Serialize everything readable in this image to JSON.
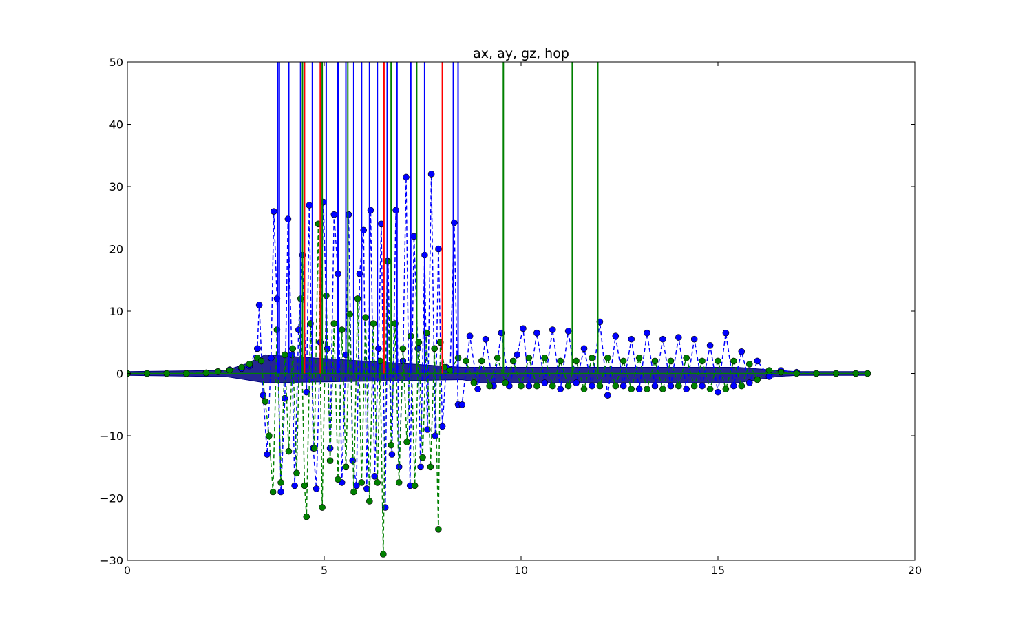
{
  "chart_data": {
    "type": "line",
    "title": "ax, ay, gz, hop",
    "xlabel": "",
    "ylabel": "",
    "xlim": [
      0,
      20
    ],
    "ylim": [
      -30,
      50
    ],
    "xticks": [
      0,
      5,
      10,
      15,
      20
    ],
    "yticks": [
      -30,
      -20,
      -10,
      0,
      10,
      20,
      30,
      40,
      50
    ],
    "ytick_labels": [
      "−30",
      "−20",
      "−10",
      "0",
      "10",
      "20",
      "30",
      "40",
      "50"
    ],
    "xtick_labels": [
      "0",
      "5",
      "10",
      "15",
      "20"
    ],
    "grid": false,
    "legend": "none",
    "colors": {
      "ax": "#0000ff",
      "ay": "#008000",
      "gz": "#00007f",
      "hop_blue": "#0000ff",
      "hop_green": "#008000",
      "hop_red": "#ff0000"
    },
    "marker_series": [
      {
        "key": "ax",
        "x": [
          0,
          0.5,
          1.0,
          1.5,
          2.0,
          2.3,
          2.6,
          2.9,
          3.1,
          3.3,
          3.35,
          3.45,
          3.55,
          3.65,
          3.72,
          3.8,
          3.9,
          4.0,
          4.08,
          4.18,
          4.25,
          4.35,
          4.45,
          4.55,
          4.62,
          4.72,
          4.8,
          4.9,
          4.98,
          5.08,
          5.15,
          5.25,
          5.35,
          5.45,
          5.55,
          5.62,
          5.72,
          5.82,
          5.9,
          6.0,
          6.08,
          6.18,
          6.28,
          6.38,
          6.45,
          6.55,
          6.62,
          6.72,
          6.82,
          6.9,
          7.0,
          7.08,
          7.18,
          7.28,
          7.38,
          7.45,
          7.55,
          7.62,
          7.72,
          7.82,
          7.9,
          8.0,
          8.1,
          8.2,
          8.3,
          8.4,
          8.5,
          8.7,
          8.9,
          9.1,
          9.3,
          9.5,
          9.7,
          9.9,
          10.05,
          10.2,
          10.4,
          10.6,
          10.8,
          11.0,
          11.2,
          11.4,
          11.6,
          11.8,
          12.0,
          12.2,
          12.4,
          12.6,
          12.8,
          13.0,
          13.2,
          13.4,
          13.6,
          13.8,
          14.0,
          14.2,
          14.4,
          14.6,
          14.8,
          15.0,
          15.2,
          15.4,
          15.6,
          15.8,
          16.0,
          16.3,
          16.6,
          17.0,
          17.5,
          18.0,
          18.5,
          18.8
        ],
        "y": [
          0,
          0,
          0,
          0,
          0.1,
          0.3,
          0.6,
          0.8,
          1.2,
          4.0,
          11.0,
          -3.5,
          -13.0,
          2.5,
          26.0,
          12.0,
          -19.0,
          -4.0,
          24.8,
          3.0,
          -18.0,
          7.0,
          19.0,
          -3.0,
          27.0,
          -12.0,
          -18.5,
          5.0,
          27.5,
          4.0,
          -12.0,
          25.5,
          16.0,
          -17.5,
          3.0,
          25.5,
          -14.0,
          -18.0,
          16.0,
          23.0,
          -18.5,
          26.2,
          -16.5,
          4.0,
          24.0,
          -21.5,
          18.0,
          -13.0,
          26.2,
          -15.0,
          2.0,
          31.5,
          -18.0,
          22.0,
          4.0,
          -15.0,
          19.0,
          -9.0,
          32.0,
          -10.0,
          20.0,
          -8.5,
          1.0,
          0.5,
          24.2,
          -5.0,
          -5.0,
          6.0,
          -2.5,
          5.5,
          -2.0,
          6.5,
          -2.0,
          3.0,
          7.2,
          -2.0,
          6.5,
          -1.5,
          7.0,
          -2.5,
          6.8,
          -1.5,
          4.0,
          -2.0,
          8.3,
          -3.5,
          6.0,
          -2.0,
          5.5,
          -2.5,
          6.5,
          -2.0,
          5.5,
          -2.0,
          5.8,
          -2.5,
          5.5,
          -2.0,
          4.5,
          -3.0,
          6.5,
          -2.0,
          3.5,
          -1.5,
          2.0,
          -0.5,
          0.5,
          0.2,
          0,
          0,
          0,
          0
        ]
      },
      {
        "key": "ay",
        "x": [
          0,
          0.5,
          1.0,
          1.5,
          2.0,
          2.3,
          2.6,
          2.9,
          3.1,
          3.3,
          3.4,
          3.5,
          3.6,
          3.7,
          3.8,
          3.9,
          4.0,
          4.1,
          4.2,
          4.3,
          4.4,
          4.5,
          4.55,
          4.65,
          4.75,
          4.85,
          4.95,
          5.05,
          5.15,
          5.25,
          5.35,
          5.45,
          5.55,
          5.65,
          5.75,
          5.85,
          5.95,
          6.05,
          6.15,
          6.25,
          6.35,
          6.42,
          6.5,
          6.6,
          6.7,
          6.8,
          6.9,
          7.0,
          7.1,
          7.2,
          7.3,
          7.4,
          7.5,
          7.6,
          7.7,
          7.8,
          7.9,
          7.95,
          8.05,
          8.2,
          8.4,
          8.6,
          8.8,
          9.0,
          9.2,
          9.4,
          9.6,
          9.8,
          10.0,
          10.2,
          10.4,
          10.6,
          10.8,
          11.0,
          11.2,
          11.4,
          11.6,
          11.8,
          12.0,
          12.2,
          12.4,
          12.6,
          12.8,
          13.0,
          13.2,
          13.4,
          13.6,
          13.8,
          14.0,
          14.2,
          14.4,
          14.6,
          14.8,
          15.0,
          15.2,
          15.4,
          15.6,
          15.8,
          16.0,
          16.3,
          16.6,
          17.0,
          17.5,
          18.0,
          18.5,
          18.8
        ],
        "y": [
          0,
          0,
          0,
          0,
          0.1,
          0.3,
          0.5,
          1.0,
          1.5,
          2.5,
          2.0,
          -4.5,
          -10.0,
          -19.0,
          7.0,
          -17.5,
          3.0,
          -12.5,
          4.0,
          -16.0,
          12.0,
          -18.0,
          -23.0,
          8.0,
          -12.0,
          24.0,
          -21.5,
          12.5,
          -14.0,
          8.0,
          -17.0,
          7.0,
          -15.0,
          9.5,
          -19.0,
          12.0,
          -17.5,
          9.0,
          -20.5,
          8.0,
          -17.5,
          2.0,
          -29.0,
          18.0,
          -11.5,
          8.0,
          -17.5,
          4.0,
          -11.0,
          6.0,
          -18.0,
          5.0,
          -13.5,
          6.5,
          -15.0,
          4.0,
          -25.0,
          5.0,
          1.0,
          0.5,
          2.5,
          2.0,
          -1.5,
          2.0,
          -2.0,
          2.5,
          -1.5,
          2.0,
          -2.0,
          2.5,
          -2.0,
          2.5,
          -2.0,
          2.0,
          -2.0,
          2.0,
          -2.5,
          2.5,
          -2.0,
          2.5,
          -2.0,
          2.0,
          -2.5,
          2.5,
          -2.5,
          2.0,
          -2.5,
          2.0,
          -2.0,
          2.5,
          -2.0,
          2.0,
          -2.5,
          2.0,
          -2.5,
          2.0,
          -2.0,
          1.5,
          -1.0,
          0.5,
          0.2,
          0,
          0,
          0,
          0,
          0
        ]
      }
    ],
    "gz_band": {
      "key": "gz",
      "x": [
        0,
        2.5,
        3.0,
        3.5,
        8.5,
        9.0,
        10.0,
        12.0,
        14.0,
        15.5,
        16.5,
        17.0,
        18.8
      ],
      "upper": [
        0.3,
        0.5,
        1.5,
        3.0,
        1.0,
        1.0,
        1.0,
        1.0,
        1.0,
        1.0,
        0.5,
        0.3,
        0.3
      ],
      "lower": [
        -0.3,
        -0.5,
        -1.0,
        -1.5,
        -1.0,
        -1.5,
        -1.5,
        -1.5,
        -1.5,
        -1.5,
        -0.5,
        -0.3,
        -0.3
      ]
    },
    "hop_lines": {
      "ymin": 0,
      "ymax": 50,
      "blue": [
        3.82,
        3.86,
        4.1,
        4.4,
        4.7,
        5.05,
        5.35,
        5.55,
        5.75,
        5.95,
        6.15,
        6.35,
        6.6,
        6.85,
        7.2,
        7.55,
        8.28,
        8.4
      ],
      "green": [
        4.45,
        4.95,
        5.6,
        6.7,
        7.35,
        9.55,
        11.3,
        11.95
      ],
      "red": [
        4.5,
        4.9,
        6.52,
        8.0
      ]
    }
  }
}
